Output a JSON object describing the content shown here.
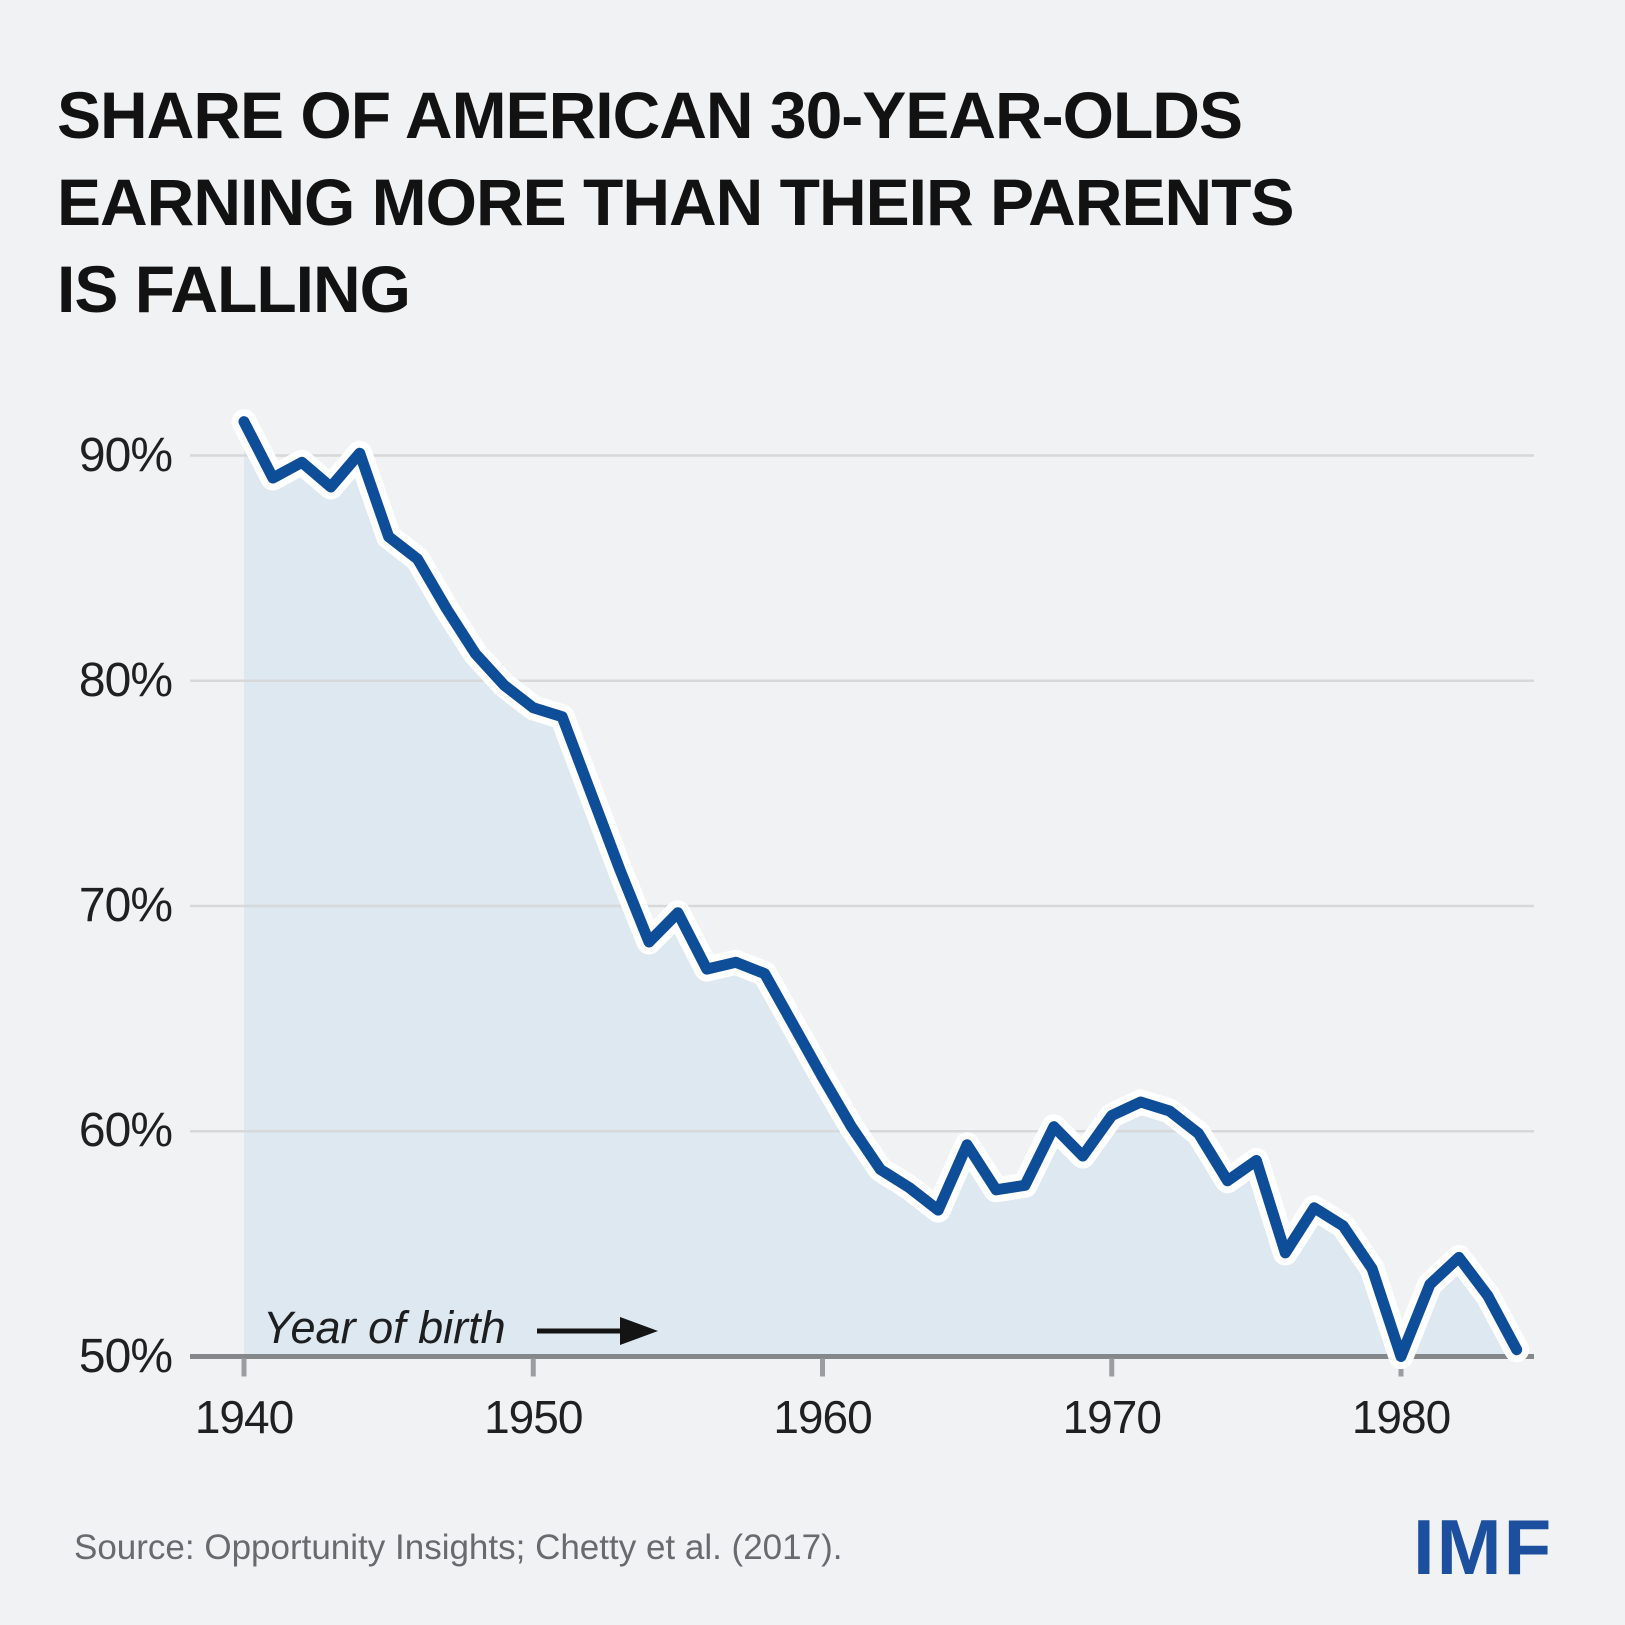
{
  "page": {
    "background": "#f1f2f4"
  },
  "title": "SHARE OF AMERICAN 30-YEAR-OLDS\nEARNING MORE THAN THEIR PARENTS\nIS FALLING",
  "source": "Source: Opportunity Insights; Chetty et al. (2017).",
  "logo": "IMF",
  "chart_data": {
    "type": "area",
    "title": "SHARE OF AMERICAN 30-YEAR-OLDS EARNING MORE THAN THEIR PARENTS IS FALLING",
    "xlabel_annotation": "Year of birth",
    "ylabel": "",
    "x": [
      1940,
      1941,
      1942,
      1943,
      1944,
      1945,
      1946,
      1947,
      1948,
      1949,
      1950,
      1951,
      1952,
      1953,
      1954,
      1955,
      1956,
      1957,
      1958,
      1959,
      1960,
      1961,
      1962,
      1963,
      1964,
      1965,
      1966,
      1967,
      1968,
      1969,
      1970,
      1971,
      1972,
      1973,
      1974,
      1975,
      1976,
      1977,
      1978,
      1979,
      1980,
      1981,
      1982,
      1983,
      1984
    ],
    "values": [
      91.5,
      89.0,
      89.7,
      88.6,
      90.1,
      86.4,
      85.4,
      83.2,
      81.2,
      79.8,
      78.8,
      78.4,
      75.0,
      71.6,
      68.4,
      69.7,
      67.2,
      67.5,
      67.0,
      64.7,
      62.4,
      60.2,
      58.3,
      57.5,
      56.5,
      59.4,
      57.4,
      57.6,
      60.2,
      58.9,
      60.7,
      61.3,
      60.9,
      59.9,
      57.8,
      58.7,
      54.6,
      56.6,
      55.8,
      53.9,
      50.0,
      53.2,
      54.4,
      52.7,
      50.3
    ],
    "xticks": [
      1940,
      1950,
      1960,
      1970,
      1980
    ],
    "yticks": [
      90,
      80,
      70,
      60,
      50
    ],
    "ytick_labels": [
      "90%",
      "80%",
      "70%",
      "60%",
      "50%"
    ],
    "xlim": [
      1940,
      1984
    ],
    "ylim": [
      50,
      92.5
    ],
    "grid": "horizontal",
    "legend": "none",
    "colors": {
      "line": "#0e4d97",
      "line_halo": "#ffffff",
      "fill": "#dde8f0",
      "grid": "#d6d8da",
      "axis": "#85888b",
      "tick": "#9b9ea1",
      "text": "#1f2022",
      "annotation": "#1d1e20",
      "source": "#686b6e",
      "logo": "#1c4f9d",
      "background": "#f1f2f4"
    }
  }
}
